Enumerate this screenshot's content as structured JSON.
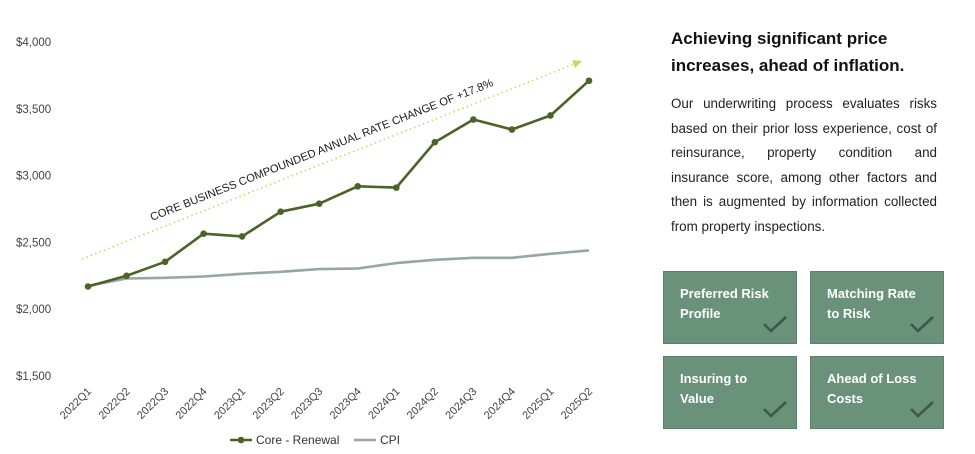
{
  "chart_data": {
    "type": "line",
    "categories": [
      "2022Q1",
      "2022Q2",
      "2022Q3",
      "2022Q4",
      "2023Q1",
      "2023Q2",
      "2023Q3",
      "2023Q4",
      "2024Q1",
      "2024Q2",
      "2024Q3",
      "2024Q4",
      "2025Q1",
      "2025Q2"
    ],
    "series": [
      {
        "name": "Core - Renewal",
        "color": "#4a6326",
        "markers": true,
        "values": [
          2170,
          2250,
          2355,
          2565,
          2545,
          2730,
          2790,
          2920,
          2910,
          3250,
          3420,
          3345,
          3450,
          3710
        ]
      },
      {
        "name": "CPI",
        "color": "#95a7a0",
        "markers": false,
        "values": [
          2175,
          2230,
          2235,
          2245,
          2265,
          2280,
          2300,
          2305,
          2345,
          2370,
          2385,
          2385,
          2415,
          2440
        ]
      }
    ],
    "ylim": [
      1500,
      4000
    ],
    "yticks": [
      1500,
      2000,
      2500,
      3000,
      3500,
      4000
    ],
    "ytick_labels": [
      "$1,500",
      "$2,000",
      "$2,500",
      "$3,000",
      "$3,500",
      "$4,000"
    ],
    "annotation": "CORE BUSINESS COMPOUNDED ANNUAL RATE CHANGE OF +17.8%",
    "annotation_color": "#d8cd6a",
    "legend_position": "bottom-center",
    "title": "",
    "xlabel": "",
    "ylabel": ""
  },
  "headline": "Achieving significant price increases, ahead of inflation.",
  "body": "Our underwriting process evaluates risks based on their prior loss experience, cost of reinsurance, property condition and insurance score, among other factors and then is augmented by information collected from property inspections.",
  "tiles": [
    {
      "label": "Preferred Risk Profile",
      "icon": "checkmark-icon"
    },
    {
      "label": "Matching Rate to Risk",
      "icon": "checkmark-icon"
    },
    {
      "label": "Insuring to Value",
      "icon": "checkmark-icon"
    },
    {
      "label": "Ahead of Loss Costs",
      "icon": "checkmark-icon"
    }
  ],
  "colors": {
    "tile_bg": "#6a9179",
    "check": "#3f5746"
  }
}
